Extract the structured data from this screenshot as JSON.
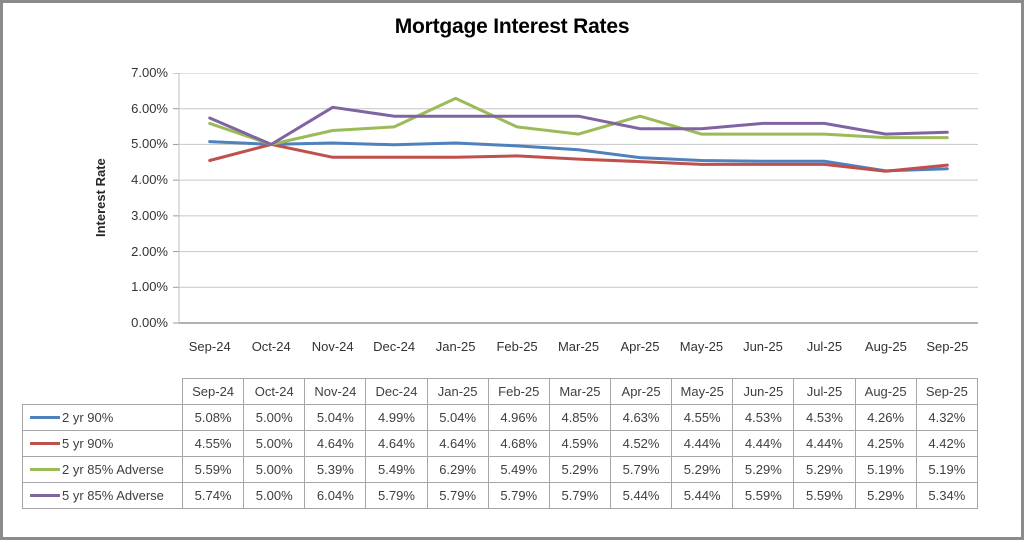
{
  "chart": {
    "title": "Mortgage Interest Rates",
    "ylabel": "Interest Rate"
  },
  "colors": {
    "grid": "#c6c6c6",
    "axis": "#9a9a9a",
    "plot_border": "#bfbfbf",
    "table_border": "#a6a6a6",
    "frame_border": "#8b8b8b",
    "text": "#3f3f3f"
  },
  "chart_data": {
    "type": "line",
    "title": "Mortgage Interest Rates",
    "xlabel": "",
    "ylabel": "Interest Rate",
    "ylim": [
      0,
      7
    ],
    "ytick_step": 1,
    "ytick_labels": [
      "0.00%",
      "1.00%",
      "2.00%",
      "3.00%",
      "4.00%",
      "5.00%",
      "6.00%",
      "7.00%"
    ],
    "grid": true,
    "legend_position": "data-table-left",
    "categories": [
      "Sep-24",
      "Oct-24",
      "Nov-24",
      "Dec-24",
      "Jan-25",
      "Feb-25",
      "Mar-25",
      "Apr-25",
      "May-25",
      "Jun-25",
      "Jul-25",
      "Aug-25",
      "Sep-25"
    ],
    "series": [
      {
        "name": "2 yr 90%",
        "color": "#4F81BD",
        "values": [
          5.08,
          5.0,
          5.04,
          4.99,
          5.04,
          4.96,
          4.85,
          4.63,
          4.55,
          4.53,
          4.53,
          4.26,
          4.32
        ]
      },
      {
        "name": "5 yr 90%",
        "color": "#C0504D",
        "values": [
          4.55,
          5.0,
          4.64,
          4.64,
          4.64,
          4.68,
          4.59,
          4.52,
          4.44,
          4.44,
          4.44,
          4.25,
          4.42
        ]
      },
      {
        "name": "2 yr 85% Adverse",
        "color": "#9BBB59",
        "values": [
          5.59,
          5.0,
          5.39,
          5.49,
          6.29,
          5.49,
          5.29,
          5.79,
          5.29,
          5.29,
          5.29,
          5.19,
          5.19
        ]
      },
      {
        "name": "5 yr 85% Adverse",
        "color": "#8064A2",
        "values": [
          5.74,
          5.0,
          6.04,
          5.79,
          5.79,
          5.79,
          5.79,
          5.44,
          5.44,
          5.59,
          5.59,
          5.29,
          5.34
        ]
      }
    ],
    "value_suffix": "%"
  }
}
